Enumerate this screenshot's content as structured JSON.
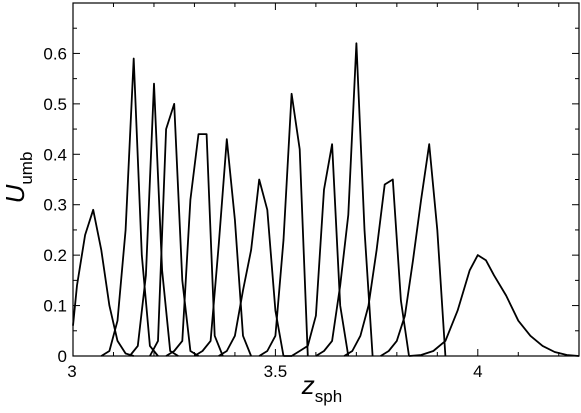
{
  "chart_data": {
    "type": "line",
    "title": "",
    "xlabel": "z",
    "xlabel_sub": "sph",
    "ylabel": "U",
    "ylabel_sub": "umb",
    "xlim": [
      3.0,
      4.25
    ],
    "ylim": [
      0.0,
      0.7
    ],
    "x_ticks": [
      3,
      3.5,
      4
    ],
    "x_tick_labels": [
      "3",
      "3.5",
      "4"
    ],
    "y_ticks": [
      0,
      0.1,
      0.2,
      0.3,
      0.4,
      0.5,
      0.6
    ],
    "y_tick_labels": [
      "0",
      "0.1",
      "0.2",
      "0.3",
      "0.4",
      "0.5",
      "0.6"
    ],
    "grid": false,
    "line_color": "#000000",
    "series": [
      {
        "x": [
          3.0,
          3.01,
          3.03,
          3.05,
          3.07,
          3.09,
          3.11,
          3.13,
          3.15
        ],
        "y": [
          0.06,
          0.14,
          0.24,
          0.29,
          0.21,
          0.1,
          0.03,
          0.005,
          0.0
        ]
      },
      {
        "x": [
          3.07,
          3.09,
          3.11,
          3.13,
          3.15,
          3.17,
          3.19,
          3.21
        ],
        "y": [
          0.0,
          0.01,
          0.07,
          0.25,
          0.59,
          0.2,
          0.02,
          0.0
        ]
      },
      {
        "x": [
          3.14,
          3.16,
          3.18,
          3.2,
          3.22,
          3.24,
          3.26
        ],
        "y": [
          0.0,
          0.02,
          0.16,
          0.54,
          0.17,
          0.01,
          0.0
        ]
      },
      {
        "x": [
          3.19,
          3.21,
          3.23,
          3.25,
          3.27,
          3.29,
          3.31
        ],
        "y": [
          0.0,
          0.03,
          0.45,
          0.5,
          0.15,
          0.01,
          0.0
        ]
      },
      {
        "x": [
          3.23,
          3.25,
          3.27,
          3.29,
          3.31,
          3.33,
          3.35,
          3.37
        ],
        "y": [
          0.0,
          0.01,
          0.03,
          0.31,
          0.44,
          0.44,
          0.04,
          0.0
        ]
      },
      {
        "x": [
          3.3,
          3.32,
          3.34,
          3.36,
          3.38,
          3.4,
          3.42,
          3.44
        ],
        "y": [
          0.0,
          0.01,
          0.03,
          0.22,
          0.43,
          0.27,
          0.04,
          0.0
        ]
      },
      {
        "x": [
          3.36,
          3.38,
          3.4,
          3.42,
          3.44,
          3.46,
          3.48,
          3.5,
          3.52
        ],
        "y": [
          0.0,
          0.01,
          0.04,
          0.13,
          0.21,
          0.35,
          0.29,
          0.09,
          0.0
        ]
      },
      {
        "x": [
          3.46,
          3.48,
          3.5,
          3.52,
          3.54,
          3.56,
          3.58
        ],
        "y": [
          0.0,
          0.01,
          0.04,
          0.23,
          0.52,
          0.41,
          0.0
        ]
      },
      {
        "x": [
          3.52,
          3.54,
          3.56,
          3.58,
          3.6,
          3.62,
          3.64,
          3.66,
          3.68
        ],
        "y": [
          0.0,
          0.0,
          0.01,
          0.02,
          0.08,
          0.33,
          0.42,
          0.1,
          0.0
        ]
      },
      {
        "x": [
          3.6,
          3.62,
          3.64,
          3.66,
          3.68,
          3.7,
          3.72,
          3.74
        ],
        "y": [
          0.0,
          0.01,
          0.03,
          0.14,
          0.28,
          0.62,
          0.25,
          0.0
        ]
      },
      {
        "x": [
          3.67,
          3.69,
          3.71,
          3.73,
          3.75,
          3.77,
          3.79,
          3.81,
          3.83
        ],
        "y": [
          0.0,
          0.01,
          0.04,
          0.1,
          0.21,
          0.34,
          0.35,
          0.11,
          0.0
        ]
      },
      {
        "x": [
          3.76,
          3.78,
          3.8,
          3.82,
          3.84,
          3.86,
          3.88,
          3.9,
          3.92
        ],
        "y": [
          0.0,
          0.01,
          0.03,
          0.08,
          0.19,
          0.31,
          0.42,
          0.25,
          0.0
        ]
      },
      {
        "x": [
          3.83,
          3.86,
          3.89,
          3.92,
          3.95,
          3.98,
          4.0,
          4.02,
          4.04,
          4.07,
          4.1,
          4.13,
          4.16,
          4.19,
          4.22,
          4.25
        ],
        "y": [
          0.0,
          0.002,
          0.01,
          0.03,
          0.09,
          0.17,
          0.2,
          0.19,
          0.16,
          0.12,
          0.07,
          0.04,
          0.02,
          0.008,
          0.002,
          0.0
        ]
      }
    ]
  }
}
